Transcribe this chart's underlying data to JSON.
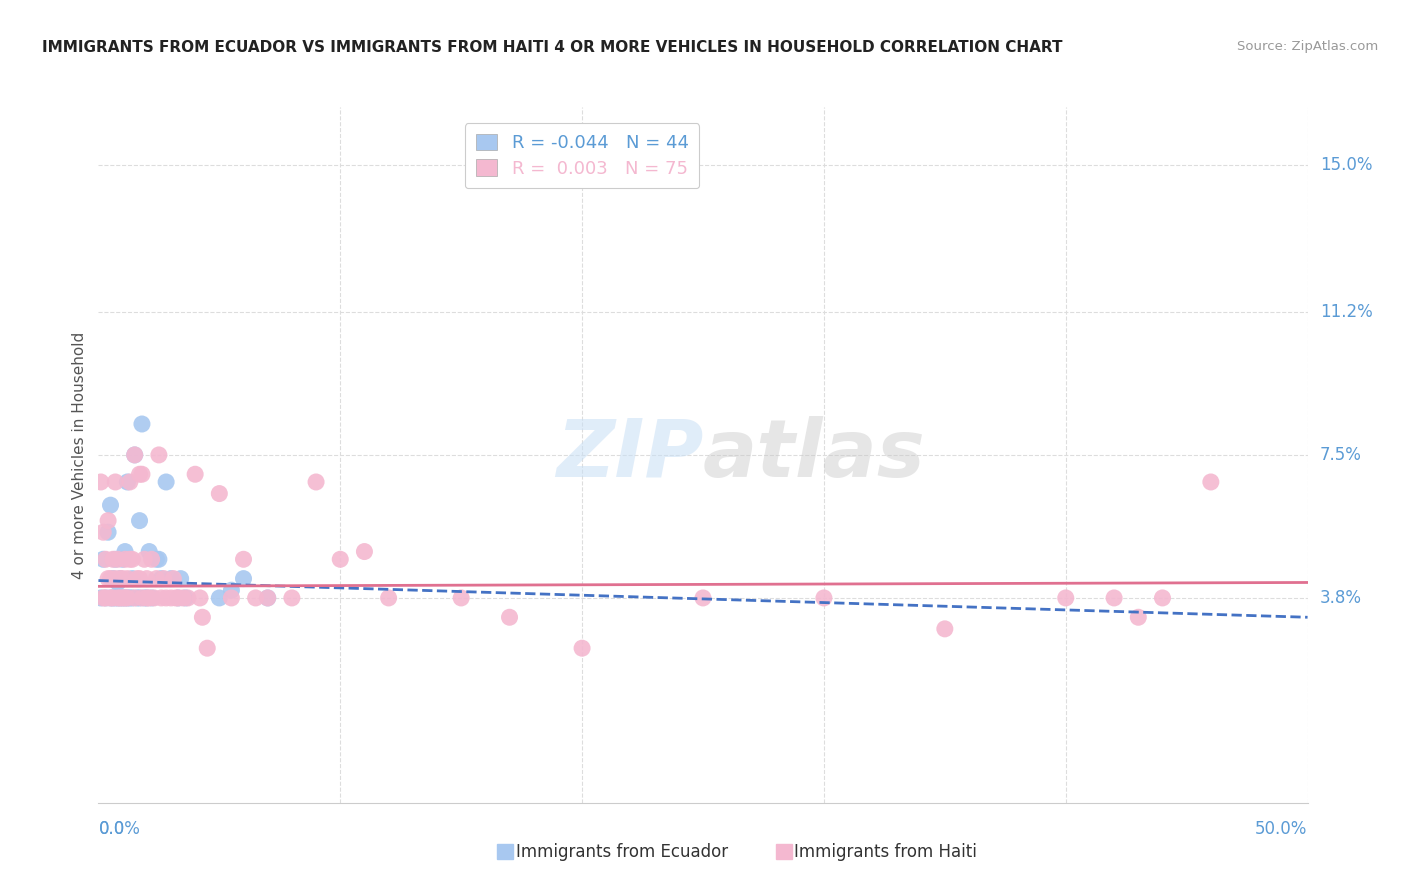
{
  "title": "IMMIGRANTS FROM ECUADOR VS IMMIGRANTS FROM HAITI 4 OR MORE VEHICLES IN HOUSEHOLD CORRELATION CHART",
  "source": "Source: ZipAtlas.com",
  "ylabel": "4 or more Vehicles in Household",
  "ytick_positions": [
    0.0,
    0.038,
    0.075,
    0.112,
    0.15
  ],
  "ytick_labels": [
    "",
    "3.8%",
    "7.5%",
    "11.2%",
    "15.0%"
  ],
  "xlim": [
    0.0,
    0.5
  ],
  "ylim": [
    -0.015,
    0.165
  ],
  "ecuador_color": "#a8c8f0",
  "haiti_color": "#f4b8d0",
  "ecuador_line_color": "#4472c4",
  "haiti_line_color": "#e07090",
  "axis_label_color": "#5b9bd5",
  "background_color": "#ffffff",
  "grid_color": "#dddddd",
  "watermark": "ZIPatlas",
  "legend_ecuador_R": "-0.044",
  "legend_ecuador_N": "44",
  "legend_haiti_R": "0.003",
  "legend_haiti_N": "75",
  "ecuador_scatter_x": [
    0.001,
    0.002,
    0.003,
    0.004,
    0.005,
    0.005,
    0.006,
    0.006,
    0.007,
    0.007,
    0.008,
    0.008,
    0.009,
    0.009,
    0.01,
    0.01,
    0.011,
    0.011,
    0.012,
    0.012,
    0.013,
    0.014,
    0.014,
    0.015,
    0.016,
    0.017,
    0.017,
    0.018,
    0.019,
    0.02,
    0.021,
    0.022,
    0.024,
    0.025,
    0.026,
    0.028,
    0.03,
    0.033,
    0.034,
    0.036,
    0.05,
    0.055,
    0.06,
    0.07
  ],
  "ecuador_scatter_y": [
    0.038,
    0.048,
    0.038,
    0.055,
    0.062,
    0.038,
    0.038,
    0.043,
    0.048,
    0.038,
    0.038,
    0.042,
    0.038,
    0.043,
    0.048,
    0.038,
    0.038,
    0.05,
    0.038,
    0.068,
    0.038,
    0.038,
    0.043,
    0.075,
    0.038,
    0.038,
    0.058,
    0.083,
    0.038,
    0.038,
    0.05,
    0.038,
    0.048,
    0.048,
    0.043,
    0.068,
    0.043,
    0.038,
    0.043,
    0.038,
    0.038,
    0.04,
    0.043,
    0.038
  ],
  "haiti_scatter_x": [
    0.001,
    0.002,
    0.002,
    0.003,
    0.003,
    0.004,
    0.004,
    0.005,
    0.005,
    0.006,
    0.006,
    0.007,
    0.007,
    0.008,
    0.008,
    0.009,
    0.009,
    0.01,
    0.01,
    0.011,
    0.011,
    0.012,
    0.012,
    0.013,
    0.013,
    0.014,
    0.015,
    0.015,
    0.016,
    0.017,
    0.017,
    0.018,
    0.018,
    0.019,
    0.02,
    0.02,
    0.021,
    0.022,
    0.023,
    0.024,
    0.025,
    0.026,
    0.027,
    0.028,
    0.03,
    0.031,
    0.032,
    0.033,
    0.035,
    0.037,
    0.04,
    0.042,
    0.043,
    0.045,
    0.05,
    0.055,
    0.06,
    0.065,
    0.07,
    0.08,
    0.09,
    0.1,
    0.11,
    0.12,
    0.15,
    0.17,
    0.2,
    0.25,
    0.3,
    0.35,
    0.4,
    0.42,
    0.43,
    0.44,
    0.46
  ],
  "haiti_scatter_y": [
    0.068,
    0.055,
    0.038,
    0.048,
    0.038,
    0.058,
    0.043,
    0.038,
    0.043,
    0.048,
    0.038,
    0.068,
    0.043,
    0.038,
    0.048,
    0.043,
    0.038,
    0.038,
    0.043,
    0.048,
    0.038,
    0.038,
    0.043,
    0.048,
    0.068,
    0.048,
    0.038,
    0.075,
    0.043,
    0.07,
    0.043,
    0.07,
    0.038,
    0.048,
    0.038,
    0.043,
    0.038,
    0.048,
    0.038,
    0.043,
    0.075,
    0.038,
    0.043,
    0.038,
    0.038,
    0.043,
    0.038,
    0.038,
    0.038,
    0.038,
    0.07,
    0.038,
    0.033,
    0.025,
    0.065,
    0.038,
    0.048,
    0.038,
    0.038,
    0.038,
    0.068,
    0.048,
    0.05,
    0.038,
    0.038,
    0.033,
    0.025,
    0.038,
    0.038,
    0.03,
    0.038,
    0.038,
    0.033,
    0.038,
    0.068
  ],
  "ecuador_line_x": [
    0.0,
    0.5
  ],
  "ecuador_line_y_start": 0.0425,
  "ecuador_line_y_end": 0.033,
  "haiti_line_x": [
    0.0,
    0.5
  ],
  "haiti_line_y_start": 0.041,
  "haiti_line_y_end": 0.042
}
